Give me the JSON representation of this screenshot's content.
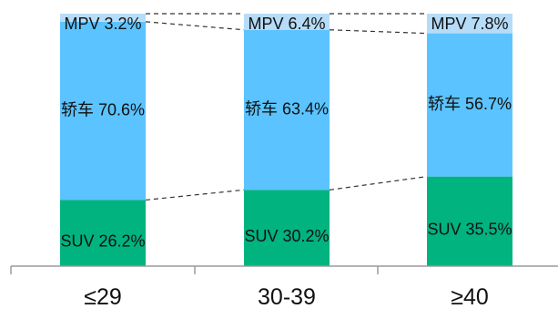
{
  "chart_data": {
    "type": "bar",
    "stacked": true,
    "normalized": true,
    "categories": [
      "≤29",
      "30-39",
      "≥40"
    ],
    "series": [
      {
        "name": "SUV",
        "values": [
          26.2,
          30.2,
          35.5
        ],
        "color": "#00B37F"
      },
      {
        "name": "轿车",
        "values": [
          70.6,
          63.4,
          56.7
        ],
        "color": "#5BC3FF"
      },
      {
        "name": "MPV",
        "values": [
          3.2,
          6.4,
          7.8
        ],
        "color": "#B6DCF8"
      }
    ],
    "segment_labels": [
      [
        "SUV 26.2%",
        "轿车 70.6%",
        "MPV 3.2%"
      ],
      [
        "SUV 30.2%",
        "轿车 63.4%",
        "MPV 6.4%"
      ],
      [
        "SUV 35.5%",
        "轿车 56.7%",
        "MPV 7.8%"
      ]
    ],
    "ylim": [
      0,
      100
    ],
    "value_unit": "%",
    "connector_lines": "dashed",
    "legend": "none",
    "grid": false,
    "title": "",
    "xlabel": "",
    "ylabel": ""
  }
}
